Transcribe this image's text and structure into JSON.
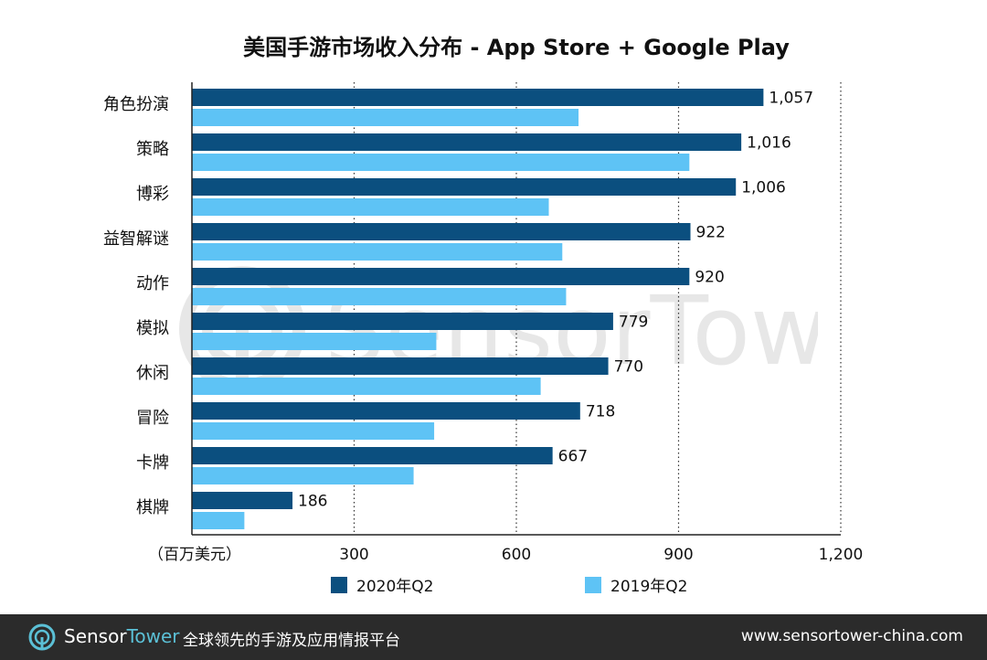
{
  "chart_data": {
    "type": "bar",
    "orientation": "horizontal",
    "title": "美国手游市场收入分布 - App Store + Google Play",
    "unit_label": "（百万美元）",
    "categories": [
      "角色扮演",
      "策略",
      "博彩",
      "益智解谜",
      "动作",
      "模拟",
      "休闲",
      "冒险",
      "卡牌",
      "棋牌"
    ],
    "series": [
      {
        "name": "2020年Q2",
        "color": "#0b4f7f",
        "values": [
          1057,
          1016,
          1006,
          922,
          920,
          779,
          770,
          718,
          667,
          186
        ],
        "labels": [
          "1,057",
          "1,016",
          "1,006",
          "922",
          "920",
          "779",
          "770",
          "718",
          "667",
          "186"
        ]
      },
      {
        "name": "2019年Q2",
        "color": "#5ec3f5",
        "values": [
          715,
          920,
          660,
          685,
          692,
          452,
          645,
          448,
          410,
          97
        ]
      }
    ],
    "xlim": [
      0,
      1200
    ],
    "xticks": [
      300,
      600,
      900,
      1200
    ],
    "xtick_labels": [
      "300",
      "600",
      "900",
      "1,200"
    ],
    "grid": "vertical-dotted",
    "legend_position": "bottom"
  },
  "watermark": {
    "text": "SensorTower"
  },
  "footer": {
    "brand_part1": "Sensor",
    "brand_part2": "Tower",
    "slogan": "全球领先的手游及应用情报平台",
    "url": "www.sensortower-china.com",
    "background_color": "#2b2b2b",
    "accent_color": "#5bc0d6"
  }
}
